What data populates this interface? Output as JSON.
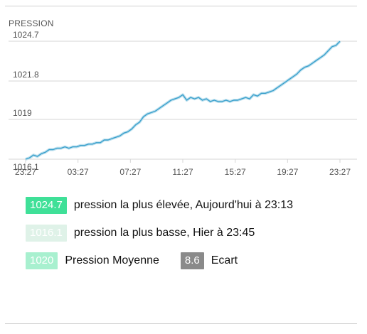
{
  "chart_data": {
    "type": "line",
    "title": "PRESSION",
    "xlabel": "",
    "ylabel": "",
    "x_tick_labels": [
      "23:27",
      "03:27",
      "07:27",
      "11:27",
      "15:27",
      "19:27",
      "23:27"
    ],
    "y_tick_labels": [
      "1016.1",
      "1019",
      "1021.8",
      "1024.7"
    ],
    "y_ticks": [
      1016.1,
      1019,
      1021.8,
      1024.7
    ],
    "ylim": [
      1016.1,
      1024.7
    ],
    "x_range_hours": [
      0,
      24
    ],
    "grid": "horizontal",
    "line_color": "#3aa0cc",
    "series": [
      {
        "x": [
          0,
          0.3,
          0.6,
          0.9,
          1.2,
          1.5,
          1.8,
          2.1,
          2.4,
          2.7,
          3.0,
          3.3,
          3.6,
          3.9,
          4.2,
          4.5,
          4.8,
          5.1,
          5.4,
          5.7,
          6.0,
          6.3,
          6.6,
          6.9,
          7.2,
          7.5,
          7.8,
          8.1,
          8.4,
          8.7,
          9.0,
          9.3,
          9.6,
          9.9,
          10.2,
          10.5,
          10.8,
          11.1,
          11.4,
          11.7,
          12.0,
          12.3,
          12.6,
          12.9,
          13.2,
          13.5,
          13.8,
          14.1,
          14.4,
          14.7,
          15.0,
          15.3,
          15.6,
          15.9,
          16.2,
          16.5,
          16.8,
          17.1,
          17.4,
          17.7,
          18.0,
          18.3,
          18.6,
          18.9,
          19.2,
          19.5,
          19.8,
          20.1,
          20.4,
          20.7,
          21.0,
          21.3,
          21.6,
          21.9,
          22.2,
          22.5,
          22.8,
          23.1,
          23.4,
          23.7,
          24.0
        ],
        "y": [
          1016.1,
          1016.2,
          1016.4,
          1016.3,
          1016.5,
          1016.6,
          1016.8,
          1016.8,
          1016.9,
          1016.9,
          1017.0,
          1016.9,
          1017.0,
          1017.0,
          1017.1,
          1017.1,
          1017.2,
          1017.2,
          1017.3,
          1017.3,
          1017.5,
          1017.5,
          1017.6,
          1017.7,
          1017.8,
          1018.0,
          1018.1,
          1018.3,
          1018.6,
          1018.8,
          1019.2,
          1019.4,
          1019.5,
          1019.6,
          1019.8,
          1020.0,
          1020.2,
          1020.4,
          1020.5,
          1020.6,
          1020.8,
          1020.4,
          1020.6,
          1020.5,
          1020.6,
          1020.4,
          1020.5,
          1020.3,
          1020.4,
          1020.3,
          1020.3,
          1020.4,
          1020.3,
          1020.4,
          1020.4,
          1020.5,
          1020.6,
          1020.5,
          1020.8,
          1020.7,
          1020.9,
          1020.9,
          1021.0,
          1021.1,
          1021.3,
          1021.5,
          1021.7,
          1021.9,
          1022.1,
          1022.3,
          1022.6,
          1022.8,
          1022.9,
          1023.1,
          1023.3,
          1023.5,
          1023.7,
          1024.0,
          1024.3,
          1024.4,
          1024.7
        ]
      }
    ]
  },
  "stats": {
    "max": {
      "value": "1024.7",
      "label": "pression la plus élevée, Aujourd'hui à 23:13",
      "color": "#3fe098"
    },
    "min": {
      "value": "1016.1",
      "label": "pression la plus basse, Hier à 23:45",
      "color": "#dff2e8"
    },
    "avg": {
      "value": "1020",
      "label": "Pression Moyenne",
      "color": "#a8f0cf"
    },
    "range": {
      "value": "8.6",
      "label": "Ecart",
      "color": "#8a8a8a"
    }
  }
}
